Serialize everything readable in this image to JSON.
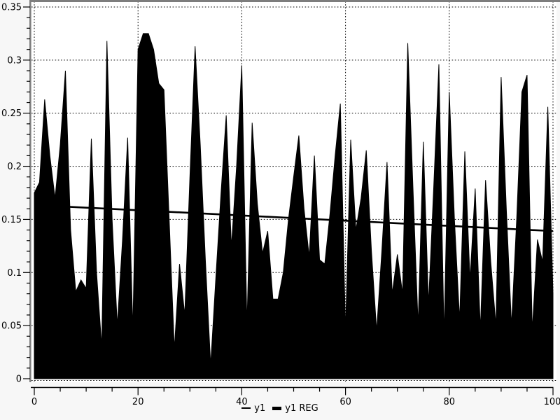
{
  "chart_data": {
    "type": "area",
    "title": "",
    "xlabel": "",
    "ylabel": "",
    "xlim": [
      0,
      100
    ],
    "ylim": [
      0,
      0.35
    ],
    "grid": "dotted",
    "x": [
      0,
      1,
      2,
      3,
      4,
      5,
      6,
      7,
      8,
      9,
      10,
      11,
      12,
      13,
      14,
      15,
      16,
      17,
      18,
      19,
      20,
      21,
      22,
      23,
      24,
      25,
      26,
      27,
      28,
      29,
      30,
      31,
      32,
      33,
      34,
      35,
      36,
      37,
      38,
      39,
      40,
      41,
      42,
      43,
      44,
      45,
      46,
      47,
      48,
      49,
      50,
      51,
      52,
      53,
      54,
      55,
      56,
      57,
      58,
      59,
      60,
      61,
      62,
      63,
      64,
      65,
      66,
      67,
      68,
      69,
      70,
      71,
      72,
      73,
      74,
      75,
      76,
      77,
      78,
      79,
      80,
      81,
      82,
      83,
      84,
      85,
      86,
      87,
      88,
      89,
      90,
      91,
      92,
      93,
      94,
      95,
      96,
      97,
      98,
      99,
      100
    ],
    "series": [
      {
        "name": "y1",
        "style": "filled-area",
        "values": [
          0.175,
          0.185,
          0.263,
          0.21,
          0.17,
          0.22,
          0.29,
          0.14,
          0.082,
          0.093,
          0.085,
          0.226,
          0.1,
          0.03,
          0.318,
          0.15,
          0.05,
          0.13,
          0.227,
          0.045,
          0.31,
          0.325,
          0.325,
          0.31,
          0.278,
          0.272,
          0.15,
          0.028,
          0.108,
          0.06,
          0.19,
          0.313,
          0.22,
          0.11,
          0.013,
          0.095,
          0.175,
          0.248,
          0.124,
          0.2,
          0.295,
          0.05,
          0.241,
          0.165,
          0.118,
          0.139,
          0.075,
          0.075,
          0.1,
          0.15,
          0.19,
          0.229,
          0.16,
          0.115,
          0.21,
          0.112,
          0.108,
          0.155,
          0.21,
          0.259,
          0.045,
          0.225,
          0.14,
          0.17,
          0.215,
          0.12,
          0.045,
          0.12,
          0.204,
          0.08,
          0.117,
          0.08,
          0.316,
          0.18,
          0.05,
          0.223,
          0.07,
          0.18,
          0.296,
          0.04,
          0.27,
          0.15,
          0.055,
          0.214,
          0.093,
          0.179,
          0.046,
          0.187,
          0.11,
          0.05,
          0.284,
          0.16,
          0.05,
          0.15,
          0.27,
          0.286,
          0.045,
          0.131,
          0.11,
          0.256,
          0.08
        ]
      },
      {
        "name": "y1 REG",
        "style": "thick-line",
        "points": [
          [
            0,
            0.1635
          ],
          [
            100,
            0.139
          ]
        ]
      }
    ],
    "x_major_ticks": [
      0,
      20,
      40,
      60,
      80,
      100
    ],
    "x_minor_step": 5,
    "y_ticks": [
      {
        "v": 0,
        "label": "0"
      },
      {
        "v": 0.05,
        "label": "0.05"
      },
      {
        "v": 0.1,
        "label": "0.1"
      },
      {
        "v": 0.15,
        "label": "0.15"
      },
      {
        "v": 0.2,
        "label": "0.2"
      },
      {
        "v": 0.25,
        "label": "0.25"
      },
      {
        "v": 0.3,
        "label": "0.3"
      },
      {
        "v": 0.35,
        "label": "0.35"
      }
    ],
    "y_minor_step": 0.01,
    "legend": {
      "position": "bottom-center",
      "entries": [
        {
          "label": "y1",
          "marker": "thin-line"
        },
        {
          "label": "y1 REG",
          "marker": "thick-line"
        }
      ]
    },
    "colors": {
      "series_fill": "#000000",
      "series_line": "#000000",
      "regression_line": "#000000",
      "grid": "#000000",
      "frame": "#7d7d7d",
      "plot_background": "#ffffff",
      "outer_background": "#f7f7f7",
      "text": "#000000"
    }
  }
}
